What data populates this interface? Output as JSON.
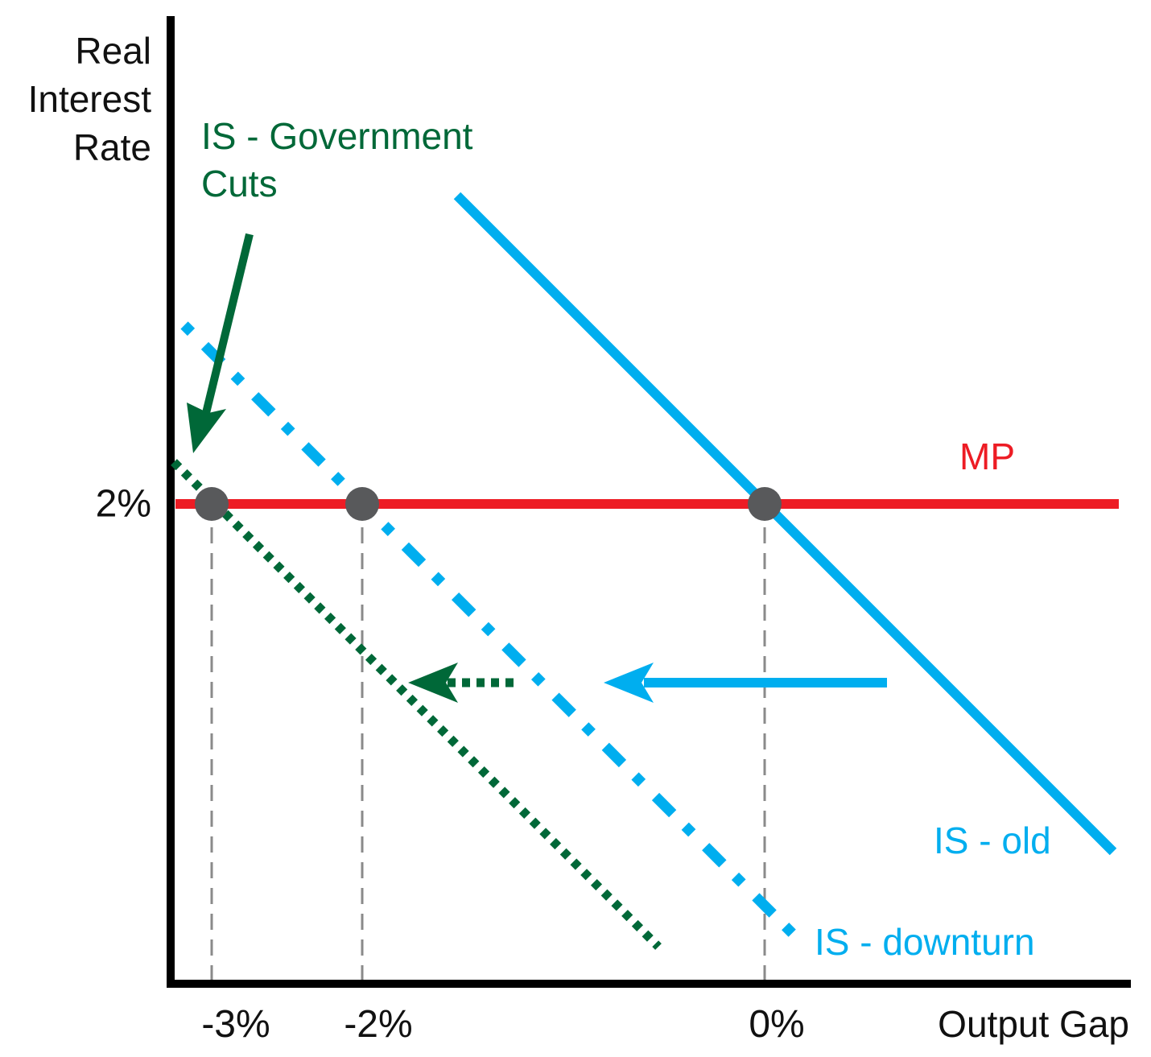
{
  "axes": {
    "y_label_lines": [
      "Real",
      "Interest",
      "Rate"
    ],
    "x_label": "Output Gap",
    "y_tick": "2%",
    "x_ticks": [
      "-3%",
      "-2%",
      "0%"
    ]
  },
  "curves": {
    "mp_label": "MP",
    "is_old_label": "IS - old",
    "is_downturn_label": "IS - downturn",
    "is_cuts_label_lines": [
      "IS - Government",
      "Cuts"
    ]
  },
  "colors": {
    "axis": "#000000",
    "mp": "#ed1c24",
    "is_blue": "#00aeef",
    "is_green": "#006838",
    "point": "#58595b",
    "guide": "#8a8a8a"
  }
}
